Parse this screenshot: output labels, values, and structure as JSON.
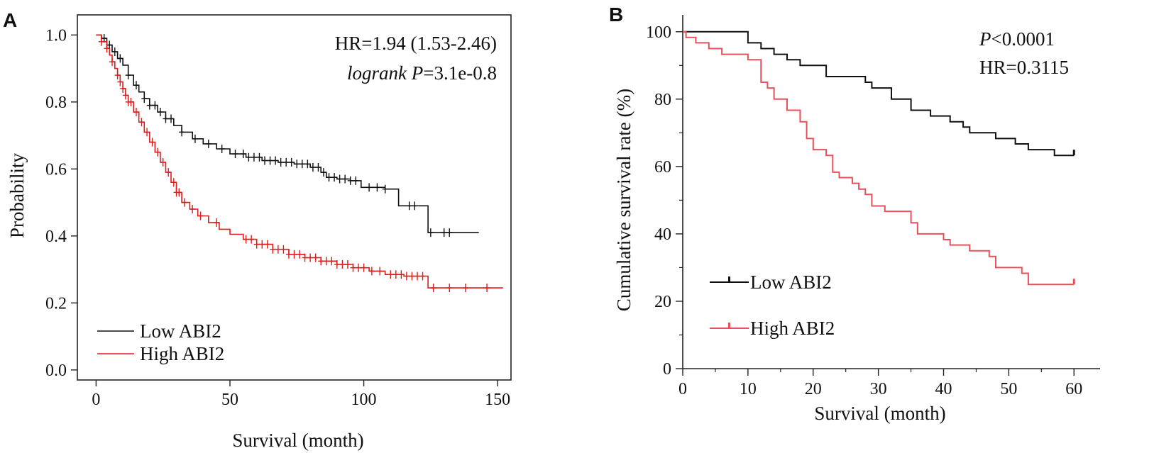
{
  "chart_data": [
    {
      "panel": "A",
      "type": "line",
      "subtype": "kaplan-meier",
      "xlabel": "Survival (month)",
      "ylabel": "Probability",
      "xlim": [
        -7,
        155
      ],
      "ylim": [
        -0.03,
        1.06
      ],
      "xticks": [
        0,
        50,
        100,
        150
      ],
      "yticks": [
        0.0,
        0.2,
        0.4,
        0.6,
        0.8,
        1.0
      ],
      "ytick_labels": [
        "0.0",
        "0.2",
        "0.4",
        "0.6",
        "0.8",
        "1.0"
      ],
      "framed": true,
      "grid": false,
      "legend_position": "bottom-left",
      "annotations": [
        {
          "parts": [
            {
              "text": "HR=1.94 (1.53-2.46)",
              "italic": false
            }
          ]
        },
        {
          "parts": [
            {
              "text": "logrank P",
              "italic": true
            },
            {
              "text": "=3.1e-0.8",
              "italic": false
            }
          ]
        }
      ],
      "series": [
        {
          "name": "Low ABI2",
          "color": "#111111",
          "steps": [
            [
              0,
              1.0
            ],
            [
              2,
              0.99
            ],
            [
              4,
              0.97
            ],
            [
              6,
              0.95
            ],
            [
              8,
              0.93
            ],
            [
              10,
              0.91
            ],
            [
              12,
              0.88
            ],
            [
              14,
              0.85
            ],
            [
              16,
              0.83
            ],
            [
              18,
              0.81
            ],
            [
              20,
              0.79
            ],
            [
              23,
              0.77
            ],
            [
              26,
              0.75
            ],
            [
              29,
              0.73
            ],
            [
              32,
              0.71
            ],
            [
              36,
              0.69
            ],
            [
              40,
              0.675
            ],
            [
              45,
              0.66
            ],
            [
              50,
              0.645
            ],
            [
              56,
              0.635
            ],
            [
              62,
              0.625
            ],
            [
              68,
              0.62
            ],
            [
              74,
              0.615
            ],
            [
              80,
              0.605
            ],
            [
              84,
              0.59
            ],
            [
              86,
              0.575
            ],
            [
              90,
              0.57
            ],
            [
              95,
              0.565
            ],
            [
              99,
              0.545
            ],
            [
              108,
              0.54
            ],
            [
              113,
              0.49
            ],
            [
              124,
              0.41
            ],
            [
              143,
              0.41
            ]
          ],
          "censor": [
            3,
            5,
            7,
            9,
            12,
            15,
            18,
            20,
            22,
            24,
            26,
            28,
            32,
            37,
            42,
            47,
            52,
            55,
            57,
            59,
            61,
            63,
            65,
            67,
            69,
            71,
            73,
            75,
            77,
            79,
            81,
            83,
            85,
            87,
            89,
            91,
            93,
            95,
            97,
            102,
            105,
            108,
            117,
            119,
            125,
            130,
            132
          ]
        },
        {
          "name": "High ABI2",
          "color": "#e01b1b",
          "steps": [
            [
              0,
              1.0
            ],
            [
              2,
              0.98
            ],
            [
              4,
              0.96
            ],
            [
              5,
              0.94
            ],
            [
              6,
              0.92
            ],
            [
              7,
              0.9
            ],
            [
              8,
              0.88
            ],
            [
              9,
              0.86
            ],
            [
              10,
              0.84
            ],
            [
              11,
              0.82
            ],
            [
              12,
              0.8
            ],
            [
              14,
              0.77
            ],
            [
              16,
              0.74
            ],
            [
              18,
              0.71
            ],
            [
              20,
              0.68
            ],
            [
              22,
              0.65
            ],
            [
              24,
              0.62
            ],
            [
              26,
              0.59
            ],
            [
              28,
              0.56
            ],
            [
              30,
              0.53
            ],
            [
              32,
              0.5
            ],
            [
              35,
              0.48
            ],
            [
              38,
              0.46
            ],
            [
              42,
              0.44
            ],
            [
              46,
              0.42
            ],
            [
              50,
              0.405
            ],
            [
              55,
              0.39
            ],
            [
              60,
              0.375
            ],
            [
              66,
              0.36
            ],
            [
              72,
              0.345
            ],
            [
              78,
              0.335
            ],
            [
              84,
              0.325
            ],
            [
              90,
              0.315
            ],
            [
              96,
              0.305
            ],
            [
              102,
              0.295
            ],
            [
              108,
              0.285
            ],
            [
              115,
              0.28
            ],
            [
              124,
              0.245
            ],
            [
              152,
              0.245
            ]
          ],
          "censor": [
            2,
            4,
            6,
            8,
            9,
            10,
            11,
            12,
            13,
            15,
            17,
            19,
            21,
            23,
            25,
            27,
            29,
            30,
            31,
            33,
            36,
            39,
            45,
            56,
            58,
            60,
            62,
            64,
            66,
            68,
            70,
            72,
            74,
            76,
            78,
            80,
            82,
            84,
            86,
            88,
            90,
            92,
            94,
            96,
            98,
            100,
            103,
            106,
            110,
            112,
            114,
            116,
            118,
            120,
            122,
            126,
            132,
            138,
            146
          ]
        }
      ]
    },
    {
      "panel": "B",
      "type": "line",
      "subtype": "kaplan-meier",
      "xlabel": "Survival (month)",
      "ylabel": "Cumulative survival rate (%)",
      "xlim": [
        0,
        64
      ],
      "ylim": [
        0,
        105
      ],
      "xticks": [
        0,
        10,
        20,
        30,
        40,
        50,
        60
      ],
      "yticks": [
        0,
        20,
        40,
        60,
        80,
        100
      ],
      "ytick_labels": [
        "0",
        "20",
        "40",
        "60",
        "80",
        "100"
      ],
      "framed": false,
      "grid": false,
      "legend_position": "bottom-left",
      "annotations": [
        {
          "parts": [
            {
              "text": "P",
              "italic": true
            },
            {
              "text": "<0.0001",
              "italic": false
            }
          ]
        },
        {
          "parts": [
            {
              "text": "HR=0.3115",
              "italic": false
            }
          ]
        }
      ],
      "series": [
        {
          "name": "Low ABI2",
          "color": "#111111",
          "steps": [
            [
              0,
              100
            ],
            [
              10,
              96.7
            ],
            [
              12,
              95
            ],
            [
              14,
              93.3
            ],
            [
              16,
              91.7
            ],
            [
              18,
              90
            ],
            [
              22,
              86.7
            ],
            [
              28,
              85
            ],
            [
              29,
              83.3
            ],
            [
              32,
              80
            ],
            [
              35,
              76.7
            ],
            [
              38,
              75
            ],
            [
              41,
              73.3
            ],
            [
              43,
              71.7
            ],
            [
              44,
              70
            ],
            [
              48,
              68.3
            ],
            [
              51,
              66.7
            ],
            [
              53,
              65
            ],
            [
              57,
              63.3
            ],
            [
              60,
              63.3
            ]
          ],
          "censor": [
            60
          ]
        },
        {
          "name": "High ABI2",
          "color": "#e8505b",
          "steps": [
            [
              0,
              100
            ],
            [
              0.5,
              98.3
            ],
            [
              2,
              96.7
            ],
            [
              4,
              95
            ],
            [
              6,
              93.3
            ],
            [
              10,
              91.7
            ],
            [
              12,
              85
            ],
            [
              13,
              83.3
            ],
            [
              14,
              80
            ],
            [
              16,
              76.7
            ],
            [
              18,
              73.3
            ],
            [
              19,
              68.3
            ],
            [
              20,
              65
            ],
            [
              22,
              63.3
            ],
            [
              23,
              58.3
            ],
            [
              24,
              56.7
            ],
            [
              26,
              55
            ],
            [
              27,
              53.3
            ],
            [
              28,
              51.7
            ],
            [
              29,
              48.3
            ],
            [
              31,
              46.7
            ],
            [
              35,
              43.3
            ],
            [
              36,
              40
            ],
            [
              40,
              38.3
            ],
            [
              41,
              36.7
            ],
            [
              44,
              35
            ],
            [
              47,
              33.3
            ],
            [
              48,
              30
            ],
            [
              52,
              28.3
            ],
            [
              53,
              25
            ],
            [
              60,
              25
            ]
          ],
          "censor": [
            60
          ]
        }
      ]
    }
  ],
  "panels": {
    "a": {
      "letter": "A"
    },
    "b": {
      "letter": "B"
    }
  }
}
